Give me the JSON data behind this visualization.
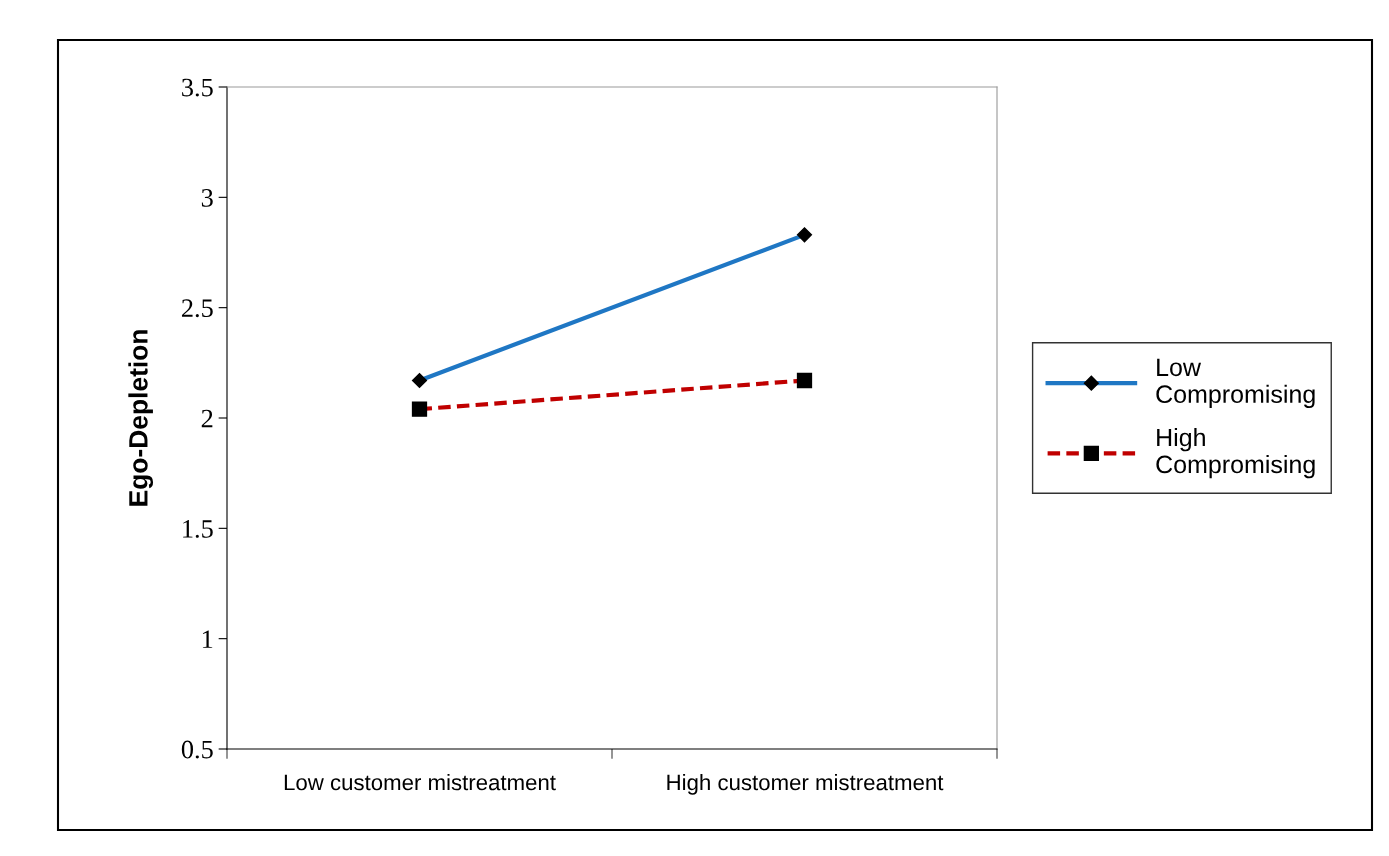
{
  "chart_data": {
    "type": "line",
    "ylabel": "Ego-Depletion",
    "categories": [
      "Low customer mistreatment",
      "High customer mistreatment"
    ],
    "series": [
      {
        "name": "Low\nCompromising",
        "color": "#1f77c4",
        "values": [
          2.17,
          2.83
        ],
        "marker": "diamond",
        "line_style": "solid"
      },
      {
        "name": "High\nCompromising",
        "color": "#c00000",
        "values": [
          2.04,
          2.17
        ],
        "marker": "square",
        "line_style": "dashed"
      }
    ],
    "ylim": [
      0.5,
      3.5
    ],
    "yticks": [
      0.5,
      1,
      1.5,
      2,
      2.5,
      3,
      3.5
    ],
    "grid": false,
    "legend": "right"
  }
}
